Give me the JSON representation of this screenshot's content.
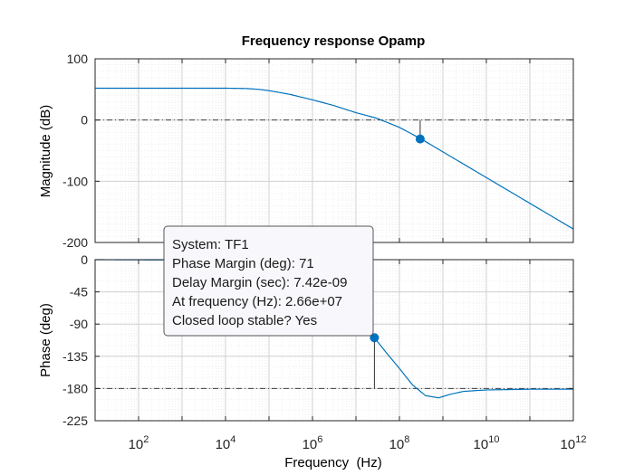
{
  "chart_data": {
    "type": "line",
    "title": "Frequency response Opamp",
    "xlabel": "Frequency  (Hz)",
    "x_scale": "log",
    "xlim": [
      10,
      1000000000000
    ],
    "x_ticks": [
      {
        "base": "10",
        "exp": "2",
        "value": 100
      },
      {
        "base": "10",
        "exp": "4",
        "value": 10000
      },
      {
        "base": "10",
        "exp": "6",
        "value": 1000000
      },
      {
        "base": "10",
        "exp": "8",
        "value": 100000000
      },
      {
        "base": "10",
        "exp": "10",
        "value": 10000000000
      },
      {
        "base": "10",
        "exp": "12",
        "value": 1000000000000
      }
    ],
    "grid": true,
    "color": "#0072BD",
    "magnitude": {
      "ylabel": "Magnitude (dB)",
      "ylim": [
        -200,
        100
      ],
      "y_ticks": [
        "100",
        "0",
        "-100",
        "-200"
      ],
      "y_tick_values": [
        100,
        0,
        -100,
        -200
      ],
      "reference_line": 0,
      "series": {
        "x": [
          10,
          1000,
          10000,
          30000,
          60000,
          100000,
          300000,
          1000000,
          3000000,
          10000000,
          30000000,
          100000000,
          300000000,
          1000000000,
          10000000000,
          100000000000,
          1000000000000
        ],
        "y": [
          52,
          52,
          52,
          51.5,
          50,
          48,
          42,
          33,
          24,
          12,
          3,
          -12,
          -30,
          -52,
          -94,
          -136,
          -178
        ]
      },
      "marker": {
        "x": 300000000,
        "y": -31
      },
      "marker_stem": [
        0,
        -31
      ]
    },
    "phase": {
      "ylabel": "Phase (deg)",
      "ylim": [
        -225,
        0
      ],
      "y_ticks": [
        "0",
        "-45",
        "-90",
        "-135",
        "-180",
        "-225"
      ],
      "y_tick_values": [
        0,
        -45,
        -90,
        -135,
        -180,
        -225
      ],
      "reference_line": -180,
      "series": {
        "x": [
          10,
          1000,
          10000,
          100000,
          1000000,
          10000000,
          26600000,
          50000000,
          100000000,
          200000000,
          400000000,
          800000000,
          1500000000,
          3000000000,
          10000000000,
          100000000000,
          1000000000000
        ],
        "y": [
          0,
          -0.5,
          -2,
          -6,
          -18,
          -60,
          -109,
          -130,
          -152,
          -175,
          -190,
          -193,
          -188,
          -184,
          -182,
          -181,
          -181
        ]
      },
      "marker": {
        "x": 26600000,
        "y": -109
      },
      "marker_stem": [
        -109,
        -180
      ]
    },
    "annotation": {
      "lines": [
        "System: TF1",
        "Phase Margin (deg): 71",
        "Delay Margin (sec): 7.42e-09",
        "At frequency (Hz): 2.66e+07",
        "Closed loop stable? Yes"
      ]
    }
  }
}
